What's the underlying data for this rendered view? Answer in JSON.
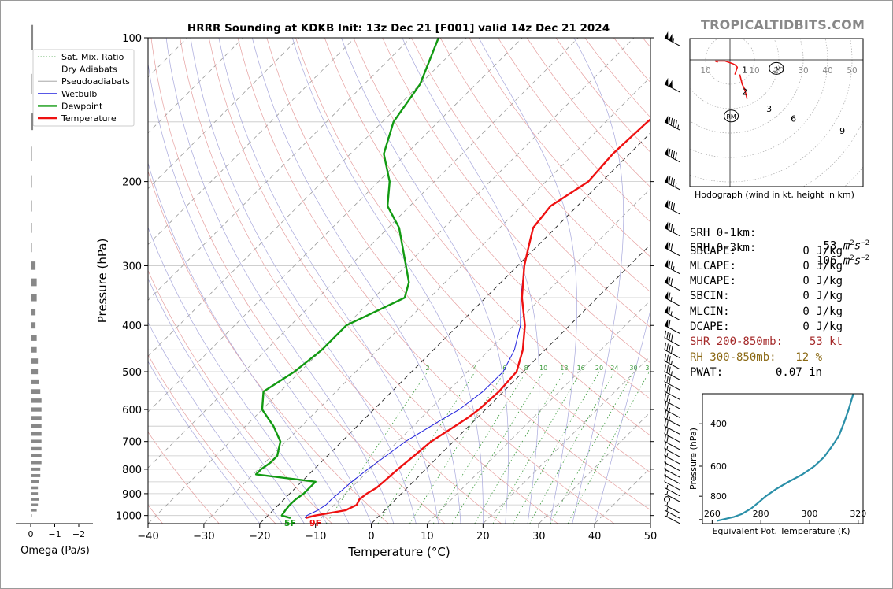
{
  "title": "HRRR Sounding at KDKB Init: 13z Dec 21 [F001] valid 14z Dec 21 2024",
  "watermark": "TROPICALTIDBITS.COM",
  "colors": {
    "temperature": "#ee1111",
    "dewpoint": "#129a12",
    "wetbulb": "#2020dd",
    "dry_adiabat": "#e6a0a0",
    "pseudoadiabat": "#a8a8dc",
    "mixratio": "#3a9a3a",
    "isotherm": "#9a9a9a",
    "hodo_0_1": "#ee1111",
    "hodo_1_3": "#ee1111",
    "hodo_3_6": "#3a9a3a",
    "hodo_6_9": "#b020b0",
    "hodo_9_up": "#2222ee",
    "theta_e": "#2a8fa8",
    "omega": "#888888"
  },
  "chart_data": [
    {
      "type": "line",
      "name": "skewt",
      "xlabel": "Temperature (°C)",
      "ylabel": "Pressure (hPa)",
      "xlim": [
        -40,
        50
      ],
      "ylim": [
        1040,
        100
      ],
      "x_ticks": [
        -40,
        -30,
        -20,
        -10,
        0,
        10,
        20,
        30,
        40,
        50
      ],
      "x_tick_labels": [
        "−40",
        "−30",
        "−20",
        "−10",
        "0",
        "10",
        "20",
        "30",
        "40",
        "50"
      ],
      "y_ticks": [
        100,
        200,
        300,
        400,
        500,
        600,
        700,
        800,
        900,
        1000
      ],
      "y_tick_labels": [
        "100",
        "200",
        "300",
        "400",
        "500",
        "600",
        "700",
        "800",
        "900",
        "1000"
      ],
      "legend": [
        "Sat. Mix. Ratio",
        "Dry Adiabats",
        "Pseudoadiabats",
        "Wetbulb",
        "Dewpoint",
        "Temperature"
      ],
      "legend_position": "top-left",
      "mixing_ratio_labels": [
        "2",
        "4",
        "6",
        "8",
        "10",
        "13",
        "16",
        "20",
        "24",
        "30",
        "36"
      ],
      "surface_dewpoint_label": "5F",
      "surface_temperature_label": "9F",
      "series": [
        {
          "name": "Temperature",
          "p": [
            1012,
            1000,
            975,
            950,
            925,
            900,
            875,
            850,
            800,
            750,
            700,
            650,
            625,
            600,
            550,
            500,
            450,
            400,
            350,
            300,
            275,
            250,
            225,
            200,
            175,
            150,
            125,
            100
          ],
          "t": [
            -12.8,
            -11.5,
            -7.0,
            -6.0,
            -6.5,
            -6.2,
            -5.5,
            -5.3,
            -5.0,
            -4.5,
            -4.0,
            -2.5,
            -1.7,
            -1.2,
            -0.8,
            -1.2,
            -4.0,
            -8.0,
            -13.5,
            -18.8,
            -21.3,
            -24.0,
            -24.8,
            -22.4,
            -23.0,
            -22.5,
            -21.4,
            -23.8
          ]
        },
        {
          "name": "Dewpoint",
          "p": [
            1012,
            1000,
            975,
            950,
            925,
            900,
            850,
            820,
            800,
            775,
            750,
            725,
            700,
            650,
            600,
            550,
            500,
            450,
            425,
            400,
            350,
            325,
            300,
            250,
            225,
            200,
            175,
            150,
            125,
            100
          ],
          "t": [
            -15.5,
            -17.5,
            -17.8,
            -18.0,
            -17.9,
            -17.5,
            -17.5,
            -29.5,
            -29.5,
            -29.0,
            -29.0,
            -30.0,
            -31.0,
            -35.0,
            -40.0,
            -43.0,
            -41.0,
            -40.0,
            -40.0,
            -40.0,
            -34.5,
            -36.5,
            -40.0,
            -48.0,
            -54.0,
            -58.0,
            -64.0,
            -68.0,
            -70.0,
            -75.0
          ]
        },
        {
          "name": "Wetbulb",
          "p": [
            1012,
            1000,
            975,
            950,
            925,
            900,
            850,
            800,
            750,
            700,
            650,
            625,
            600,
            550,
            500,
            450,
            400,
            350,
            300,
            275,
            250,
            225,
            200,
            175,
            150,
            125,
            100
          ],
          "t": [
            -12.9,
            -13.0,
            -12.0,
            -11.5,
            -11.5,
            -11.3,
            -11.0,
            -10.4,
            -9.5,
            -8.6,
            -6.8,
            -5.8,
            -4.7,
            -3.7,
            -3.6,
            -5.5,
            -8.8,
            -13.7,
            -18.8,
            -21.3,
            -24.0,
            -24.8,
            -22.4,
            -23.0,
            -22.5,
            -21.4,
            -23.8
          ]
        }
      ]
    },
    {
      "type": "line",
      "name": "hodograph",
      "caption": "Hodograph (wind in kt, height in km)",
      "ring_labels": [
        "10",
        "10",
        "20",
        "30",
        "40",
        "50"
      ],
      "motion_markers": [
        "LM",
        "RM"
      ],
      "height_labels": [
        "1",
        "2",
        "3",
        "6",
        "9"
      ],
      "segments": [
        {
          "name": "0-1 km",
          "color_key": "hodo_0_1",
          "u": [
            -5,
            -6,
            -2,
            1,
            2,
            3,
            2
          ],
          "v": [
            1,
            0.5,
            0.5,
            1.5,
            2,
            3,
            6
          ]
        },
        {
          "name": "1-3 km",
          "color_key": "hodo_1_3",
          "u": [
            4,
            5,
            6,
            7
          ],
          "v": [
            6,
            10,
            12,
            16
          ]
        },
        {
          "name": "3-6 km",
          "color_key": "hodo_3_6",
          "u": [
            17,
            20,
            21,
            24,
            26
          ],
          "v": [
            -18,
            -20,
            -24,
            -26,
            -27
          ]
        },
        {
          "name": "6-9 km",
          "color_key": "hodo_6_9",
          "u": [
            26,
            30,
            34,
            37,
            40,
            42,
            43
          ],
          "v": [
            -27,
            -29,
            -33,
            -36,
            -36,
            -34,
            -32
          ]
        },
        {
          "name": "9+ km",
          "color_key": "hodo_9_up",
          "u": [
            43,
            40,
            38,
            37,
            36,
            35,
            34
          ],
          "v": [
            -32,
            -36,
            -40,
            -44,
            -47,
            -50,
            -52
          ]
        }
      ]
    },
    {
      "type": "line",
      "name": "theta_e_profile",
      "xlabel": "Equivalent Pot. Temperature (K)",
      "ylabel": "Pressure (hPa)",
      "xlim": [
        256,
        322
      ],
      "ylim": [
        1040,
        300
      ],
      "x_ticks": [
        260,
        280,
        300,
        320
      ],
      "y_ticks": [
        400,
        600,
        800
      ],
      "series": [
        {
          "name": "Theta-E",
          "p": [
            1012,
            975,
            950,
            925,
            900,
            850,
            800,
            750,
            700,
            650,
            600,
            550,
            500,
            450,
            400,
            350,
            300
          ],
          "x": [
            262,
            269,
            272,
            274,
            276,
            279,
            282,
            286,
            291,
            297,
            302,
            306,
            309,
            312,
            314,
            316,
            318
          ]
        }
      ]
    },
    {
      "type": "bar",
      "name": "omega",
      "xlabel": "Omega (Pa/s)",
      "x_ticks": [
        0,
        -1,
        -2
      ],
      "x_tick_labels": [
        "0",
        "−1",
        "−2"
      ],
      "p": [
        1000,
        975,
        950,
        925,
        900,
        875,
        850,
        825,
        800,
        775,
        750,
        725,
        700,
        675,
        650,
        625,
        600,
        575,
        550,
        525,
        500,
        475,
        450,
        425,
        400,
        375,
        350,
        325,
        300,
        275,
        250,
        225,
        200,
        175,
        150,
        125,
        100
      ],
      "values": [
        -0.05,
        -0.25,
        -0.3,
        -0.35,
        -0.3,
        -0.3,
        -0.35,
        -0.4,
        -0.4,
        -0.45,
        -0.45,
        -0.45,
        -0.45,
        -0.45,
        -0.45,
        -0.45,
        -0.45,
        -0.45,
        -0.4,
        -0.35,
        -0.3,
        -0.3,
        -0.25,
        -0.25,
        -0.2,
        -0.2,
        -0.25,
        -0.25,
        -0.2,
        -0.05,
        -0.05,
        -0.05,
        -0.05,
        -0.05,
        -0.1,
        -0.05,
        -0.1
      ]
    }
  ],
  "stats": {
    "srh01": {
      "label": "SRH 0-1km:",
      "value": "53",
      "unit_sup": "−2"
    },
    "srh03": {
      "label": "SRH 0-3km:",
      "value": "106",
      "unit_sup": "−2"
    },
    "sbcape": {
      "label": "SBCAPE:",
      "value": "0 J/kg"
    },
    "mlcape": {
      "label": "MLCAPE:",
      "value": "0 J/kg"
    },
    "mucape": {
      "label": "MUCAPE:",
      "value": "0 J/kg"
    },
    "sbcin": {
      "label": "SBCIN:",
      "value": "0 J/kg"
    },
    "mlcin": {
      "label": "MLCIN:",
      "value": "0 J/kg"
    },
    "dcape": {
      "label": "DCAPE:",
      "value": "0 J/kg"
    },
    "shr": {
      "label": "SHR 200-850mb:",
      "value": "53 kt"
    },
    "rh": {
      "label": "RH 300-850mb:",
      "value": "12 %"
    },
    "pwat": {
      "label": "PWAT:",
      "value": "0.07 in"
    }
  },
  "wind_barbs": {
    "p": [
      100,
      125,
      150,
      175,
      200,
      225,
      250,
      275,
      300,
      325,
      350,
      375,
      400,
      425,
      450,
      475,
      500,
      525,
      550,
      575,
      600,
      625,
      650,
      675,
      700,
      725,
      750,
      775,
      800,
      825,
      850,
      875,
      900,
      925,
      950,
      975,
      1000
    ],
    "speed_kt": [
      105,
      100,
      95,
      90,
      85,
      80,
      75,
      70,
      75,
      70,
      65,
      65,
      60,
      40,
      40,
      35,
      35,
      30,
      30,
      25,
      25,
      25,
      20,
      20,
      20,
      15,
      15,
      10,
      10,
      10,
      10,
      5,
      5,
      0,
      5,
      5,
      5
    ]
  }
}
